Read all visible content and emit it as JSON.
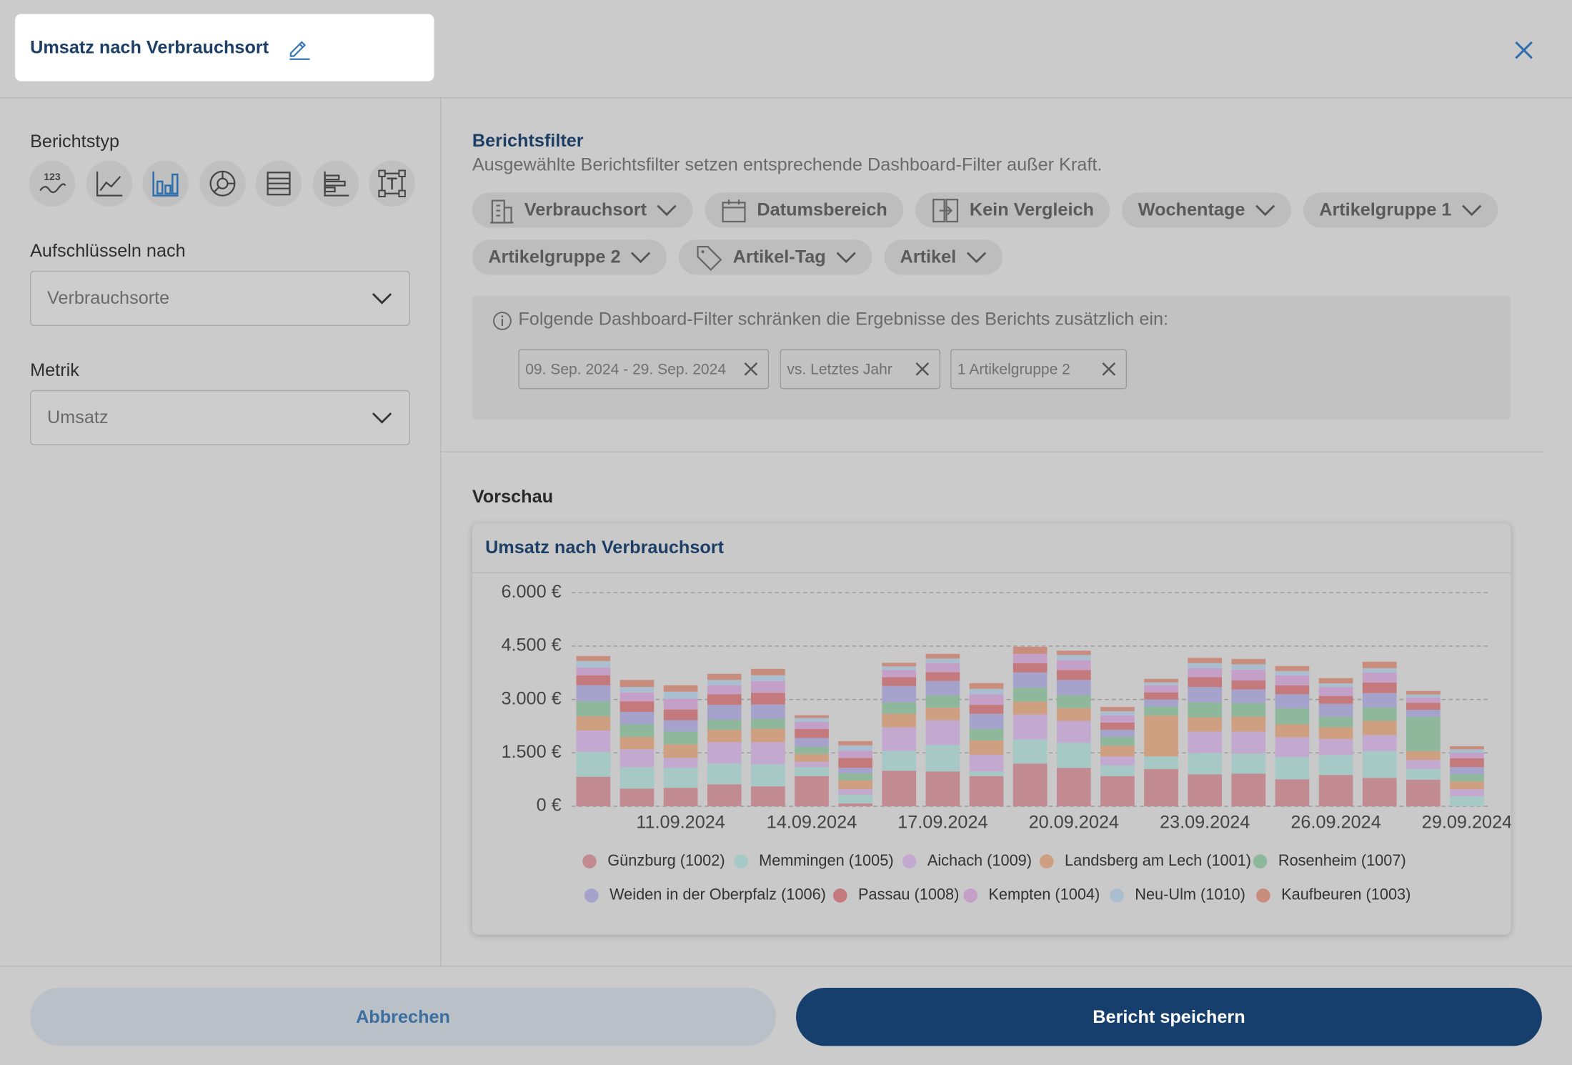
{
  "header": {
    "title": "Umsatz nach Verbrauchsort"
  },
  "sidebar": {
    "report_type_label": "Berichtstyp",
    "kpi_icon_text": "123",
    "breakdown_label": "Aufschlüsseln nach",
    "breakdown_value": "Verbrauchsorte",
    "metric_label": "Metrik",
    "metric_value": "Umsatz"
  },
  "filters": {
    "title": "Berichtsfilter",
    "description": "Ausgewählte Berichtsfilter setzen entsprechende Dashboard-Filter außer Kraft.",
    "buttons": [
      "Verbrauchsort",
      "Datumsbereich",
      "Kein Vergleich",
      "Wochentage",
      "Artikelgruppe 1",
      "Artikelgruppe 2",
      "Artikel-Tag",
      "Artikel"
    ],
    "info": "Folgende Dashboard-Filter schränken die Ergebnisse des Berichts zusätzlich ein:",
    "chips": [
      "09. Sep. 2024 - 29. Sep. 2024",
      "vs. Letztes Jahr",
      "1 Artikelgruppe 2"
    ]
  },
  "preview": {
    "title": "Vorschau"
  },
  "chart_data": {
    "type": "bar",
    "stacked": true,
    "title": "Umsatz nach Verbrauchsort",
    "categories": [
      null,
      null,
      "11.09.2024",
      null,
      null,
      "14.09.2024",
      null,
      null,
      "17.09.2024",
      null,
      null,
      "20.09.2024",
      null,
      null,
      "23.09.2024",
      null,
      null,
      "26.09.2024",
      null,
      null,
      "29.09.2024"
    ],
    "ylim": [
      0,
      6000
    ],
    "yticks": [
      {
        "value": 0,
        "label": "0 €"
      },
      {
        "value": 1500,
        "label": "1.500 €"
      },
      {
        "value": 3000,
        "label": "3.000 €"
      },
      {
        "value": 4500,
        "label": "4.500 €"
      },
      {
        "value": 6000,
        "label": "6.000 €"
      }
    ],
    "grid": true,
    "series": [
      {
        "name": "Günzburg (1002)",
        "color": "#c28b91",
        "values": [
          830,
          500,
          520,
          620,
          560,
          850,
          80,
          1000,
          980,
          850,
          1200,
          1080,
          850,
          1050,
          900,
          920,
          760,
          880,
          800,
          750,
          0
        ]
      },
      {
        "name": "Memmingen (1005)",
        "color": "#a6c9c5",
        "values": [
          700,
          600,
          560,
          580,
          620,
          250,
          250,
          560,
          740,
          130,
          680,
          700,
          300,
          350,
          600,
          560,
          620,
          560,
          750,
          300,
          280
        ]
      },
      {
        "name": "Aichach (1009)",
        "color": "#c3a9cf",
        "values": [
          600,
          500,
          280,
          600,
          620,
          150,
          150,
          660,
          700,
          470,
          700,
          620,
          250,
          0,
          600,
          620,
          560,
          450,
          450,
          250,
          200
        ]
      },
      {
        "name": "Landsberg am Lech (1001)",
        "color": "#cf9f81",
        "values": [
          400,
          350,
          380,
          350,
          380,
          220,
          250,
          380,
          350,
          400,
          360,
          360,
          300,
          1150,
          400,
          420,
          360,
          330,
          400,
          250,
          220
        ]
      },
      {
        "name": "Rosenheim (1007)",
        "color": "#8fb79b",
        "values": [
          420,
          350,
          360,
          280,
          280,
          200,
          200,
          320,
          350,
          330,
          390,
          360,
          250,
          250,
          420,
          380,
          450,
          300,
          380,
          960,
          200
        ]
      },
      {
        "name": "Weiden in der Oberpfalz (1006)",
        "color": "#a5a3cc",
        "values": [
          450,
          350,
          320,
          420,
          400,
          250,
          150,
          460,
          400,
          420,
          430,
          430,
          200,
          200,
          430,
          380,
          400,
          360,
          400,
          200,
          200
        ]
      },
      {
        "name": "Passau (1008)",
        "color": "#c47a7c",
        "values": [
          280,
          300,
          300,
          300,
          330,
          250,
          280,
          250,
          250,
          250,
          260,
          280,
          200,
          200,
          280,
          260,
          250,
          220,
          300,
          200,
          250
        ]
      },
      {
        "name": "Kempten (1004)",
        "color": "#c4a0c9",
        "values": [
          220,
          250,
          300,
          250,
          330,
          200,
          200,
          200,
          250,
          300,
          260,
          280,
          200,
          200,
          250,
          300,
          280,
          250,
          280,
          150,
          150
        ]
      },
      {
        "name": "Neu-Ulm (1010)",
        "color": "#a9bfd0",
        "values": [
          180,
          150,
          200,
          150,
          160,
          110,
          150,
          100,
          130,
          150,
          0,
          140,
          120,
          80,
          140,
          150,
          120,
          100,
          120,
          80,
          100
        ]
      },
      {
        "name": "Kaufbeuren (1003)",
        "color": "#c98d7d",
        "values": [
          140,
          200,
          180,
          170,
          180,
          80,
          120,
          100,
          130,
          160,
          200,
          120,
          120,
          100,
          150,
          150,
          140,
          150,
          180,
          100,
          90
        ]
      }
    ]
  },
  "footer": {
    "cancel": "Abbrechen",
    "save": "Bericht speichern"
  }
}
